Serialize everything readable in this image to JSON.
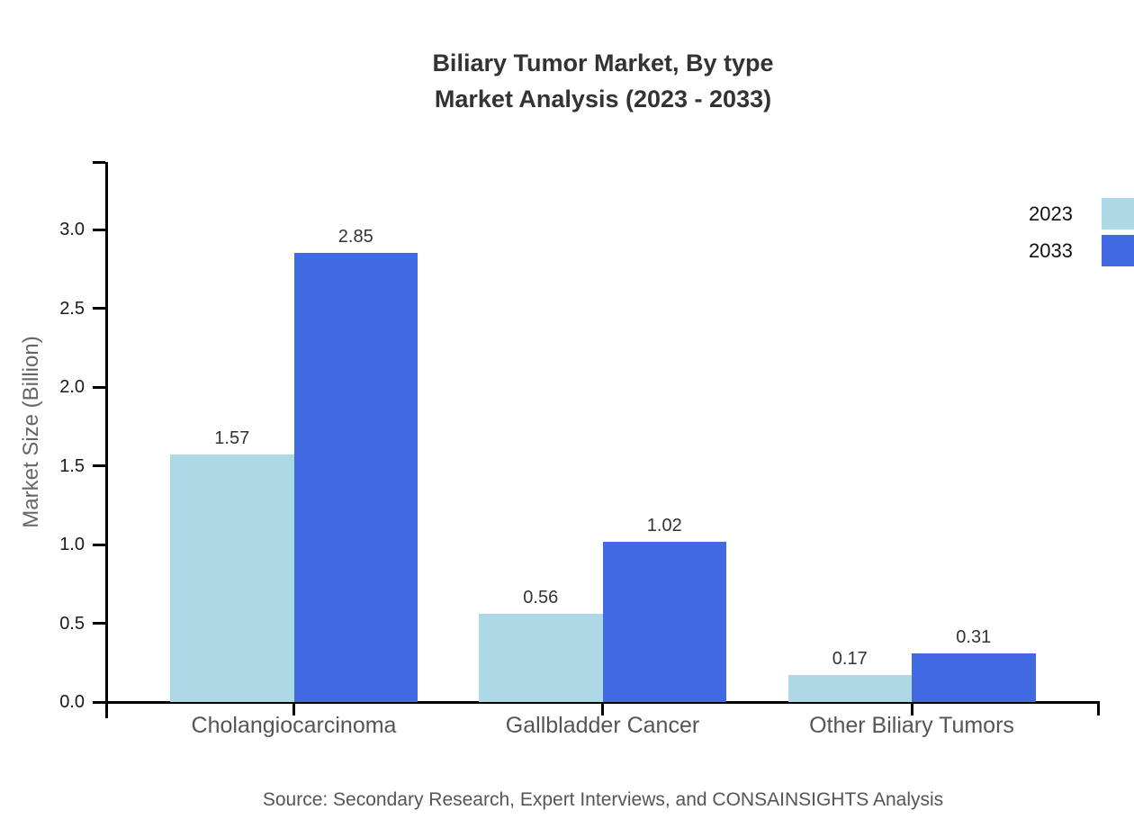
{
  "title": {
    "line1": "Biliary Tumor Market, By type",
    "line2": "Market Analysis (2023 - 2033)"
  },
  "source": "Source: Secondary Research, Expert Interviews, and CONSAINSIGHTS Analysis",
  "chart_data": {
    "type": "bar",
    "categories": [
      "Cholangiocarcinoma",
      "Gallbladder Cancer",
      "Other Biliary Tumors"
    ],
    "series": [
      {
        "name": "2023",
        "color": "#ADD8E6",
        "values": [
          1.57,
          0.56,
          0.17
        ]
      },
      {
        "name": "2033",
        "color": "#4169E1",
        "values": [
          2.85,
          1.02,
          0.31
        ]
      }
    ],
    "title": "Biliary Tumor Market, By type — Market Analysis (2023 - 2033)",
    "xlabel": "",
    "ylabel": "Market Size (Billion)",
    "yticks": [
      0.0,
      0.5,
      1.0,
      1.5,
      2.0,
      2.5,
      3.0
    ],
    "ylim": [
      0,
      3.43
    ],
    "grid": false,
    "legend_position": "top-right",
    "value_labels": true,
    "value_label_decimals": 2,
    "tick_label_decimals": 1
  },
  "colors": {
    "background": "#ffffff",
    "axis": "#000000",
    "title_text": "#333333",
    "tick_label": "#1a1a1a",
    "category_label": "#555555",
    "value_label": "#333333",
    "ylabel_text": "#666666",
    "source_text": "#555555",
    "legend_label": "#111111",
    "series_2023": "#ADD8E6",
    "series_2033": "#4169E1"
  }
}
